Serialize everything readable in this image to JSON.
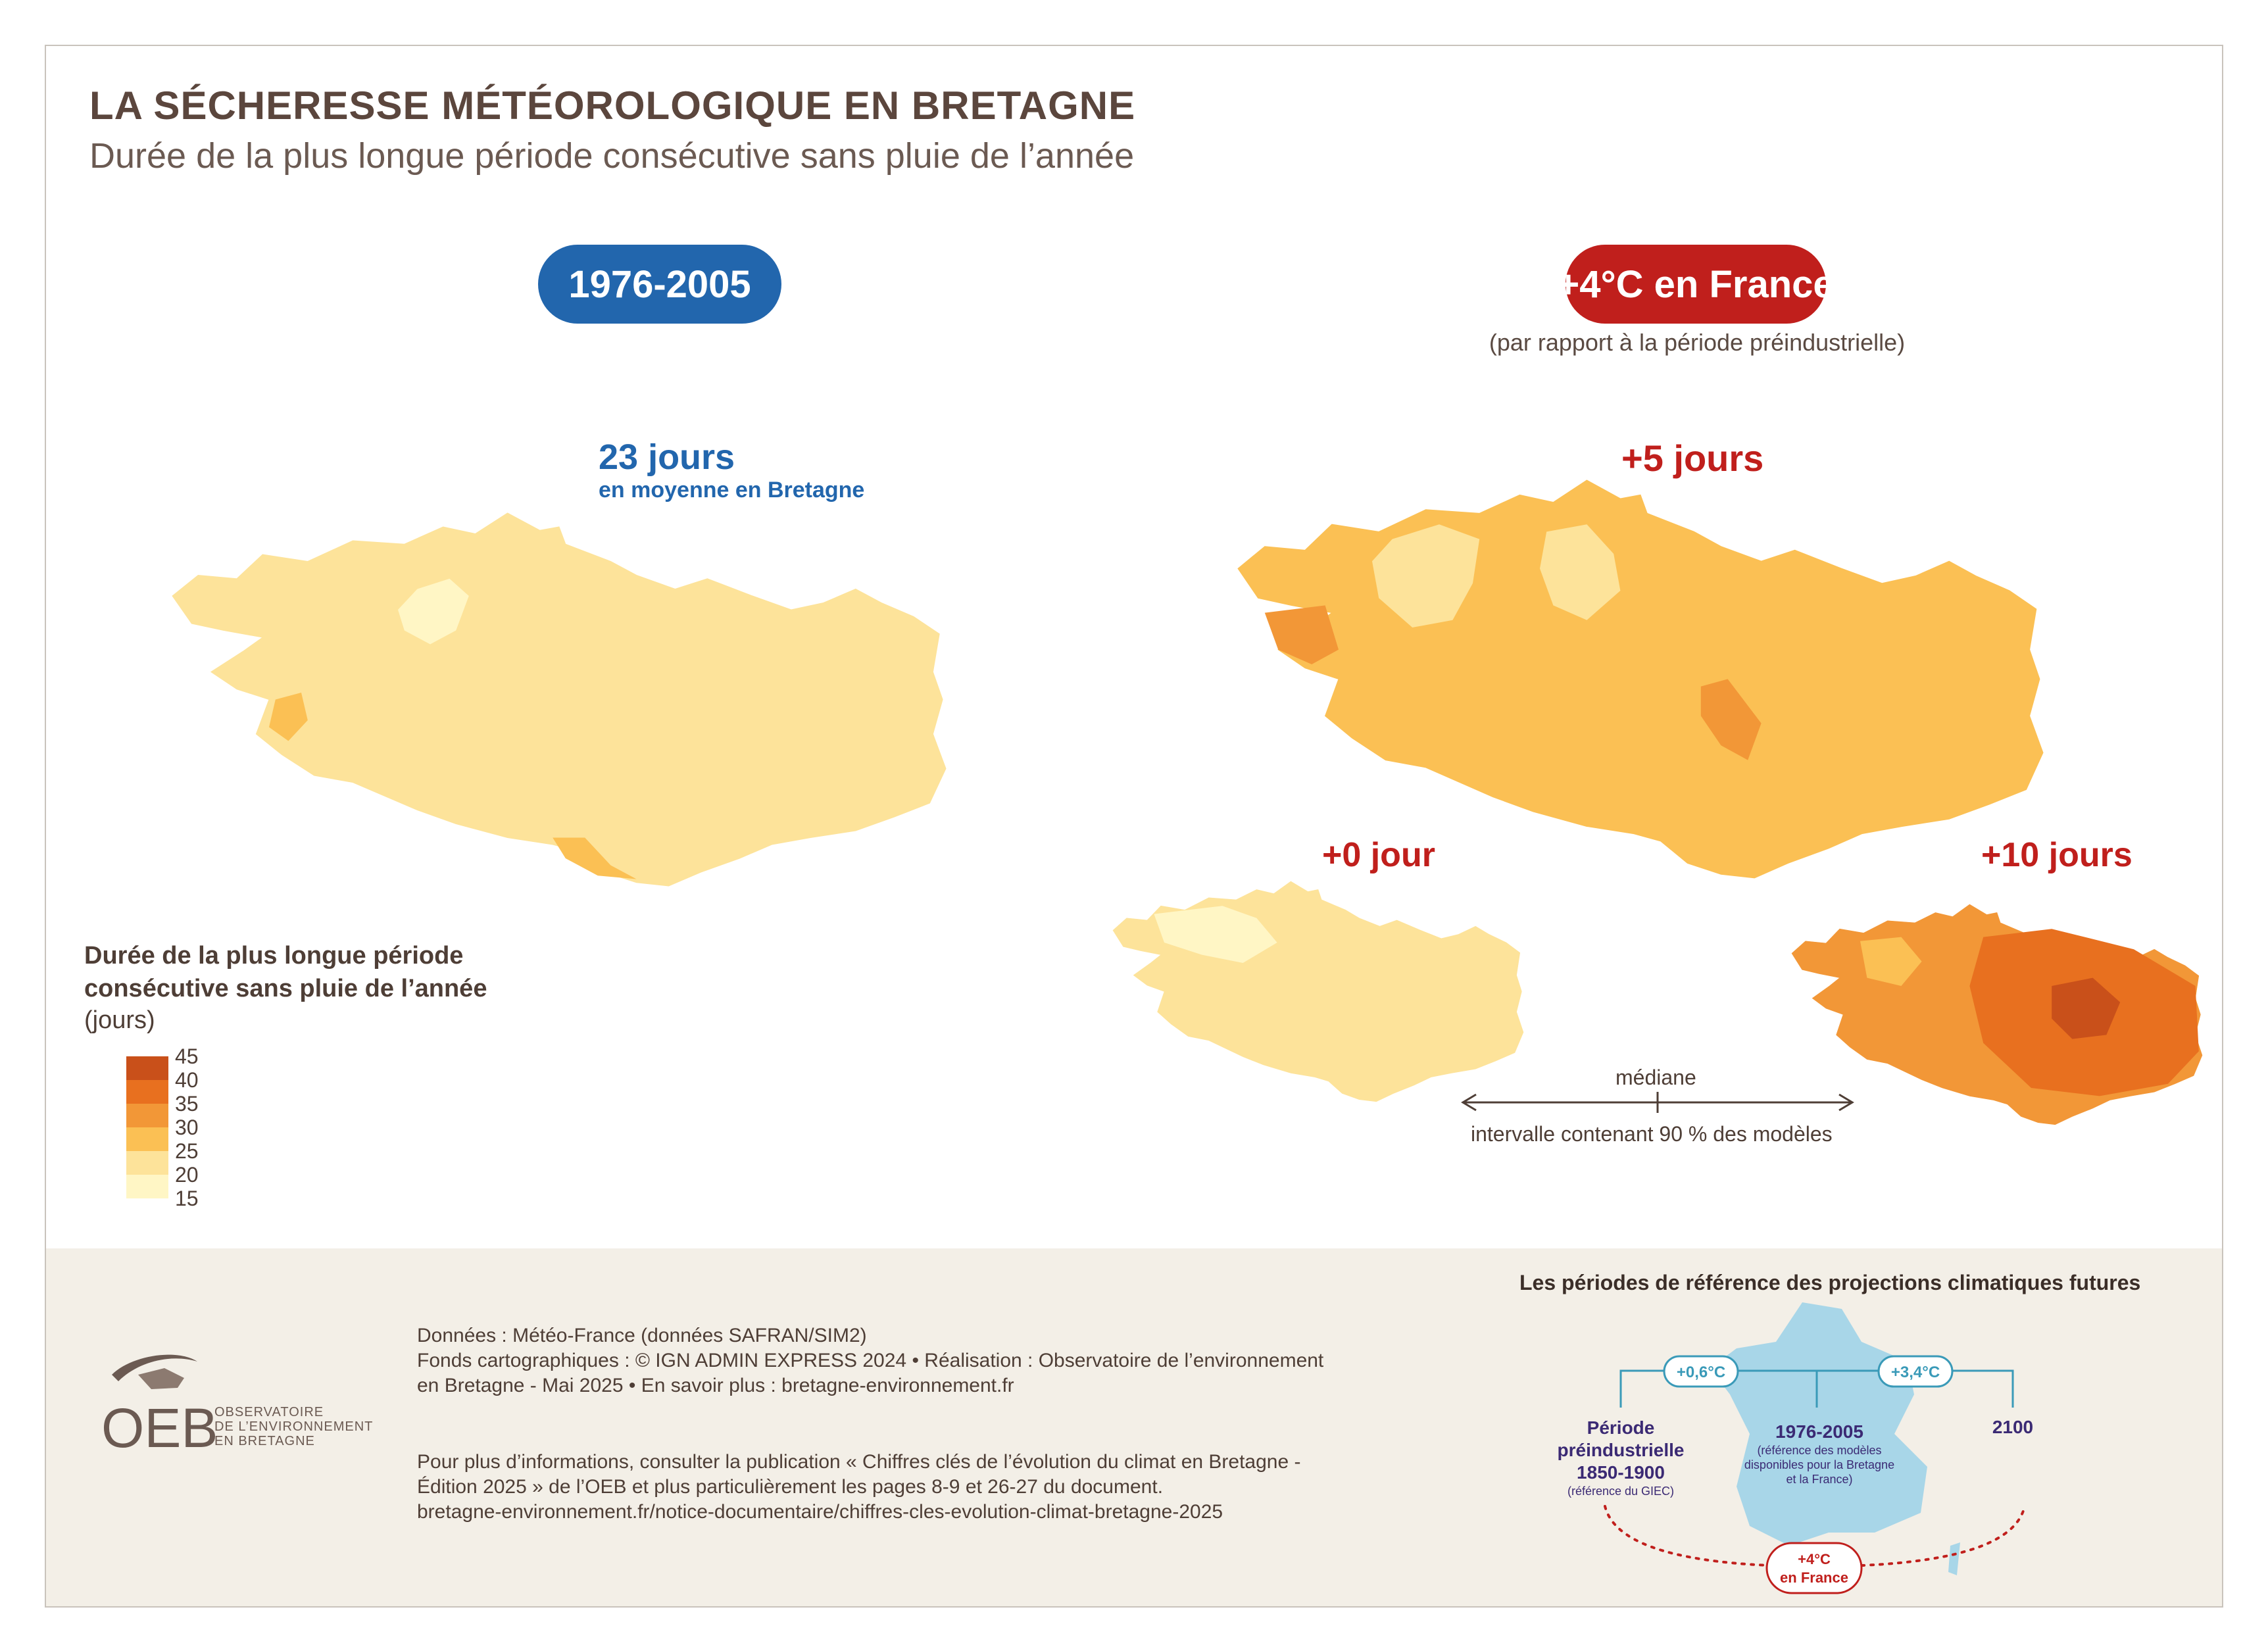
{
  "header": {
    "title": "LA SÉCHERESSE MÉTÉOROLOGIQUE EN BRETAGNE",
    "subtitle": "Durée de la plus longue période consécutive sans pluie de l’année"
  },
  "periods": {
    "baseline": {
      "label": "1976-2005",
      "color": "#2266ad"
    },
    "scenario": {
      "label": "+4°C en France",
      "note": "(par rapport à la période préindustrielle)",
      "color": "#c01f1c"
    }
  },
  "stats": {
    "baseline_value": "23 jours",
    "baseline_label": "en moyenne en Bretagne",
    "median_delta": "+5 jours",
    "low_delta": "+0 jour",
    "high_delta": "+10 jours"
  },
  "legend": {
    "title": "Durée de la plus longue période consécutive sans pluie de l’année",
    "unit": "(jours)",
    "ticks": [
      "45",
      "40",
      "35",
      "30",
      "25",
      "20",
      "15"
    ],
    "classes": [
      {
        "range": "40-45",
        "color": "#c9501a"
      },
      {
        "range": "35-40",
        "color": "#e8701f"
      },
      {
        "range": "30-35",
        "color": "#f29737"
      },
      {
        "range": "25-30",
        "color": "#fbc054"
      },
      {
        "range": "20-25",
        "color": "#fde39a"
      },
      {
        "range": "15-20",
        "color": "#fff6c5"
      }
    ]
  },
  "uncertainty": {
    "median_label": "médiane",
    "interval_label": "intervalle contenant 90 % des modèles"
  },
  "footer": {
    "credits": [
      "Données : Météo-France (données SAFRAN/SIM2)",
      "Fonds cartographiques : © IGN ADMIN EXPRESS 2024 • Réalisation : Observatoire de l’environnement",
      "en Bretagne - Mai 2025  • En savoir plus : bretagne-environnement.fr"
    ],
    "more_info": [
      "Pour plus d’informations, consulter la publication « Chiffres clés de l’évolution du climat en Bretagne -",
      "Édition 2025 » de l’OEB et plus particulièrement les pages 8-9 et 26-27 du document.",
      "bretagne-environnement.fr/notice-documentaire/chiffres-cles-evolution-climat-bretagne-2025"
    ],
    "logo": {
      "acronym": "OEB",
      "line1": "OBSERVATOIRE",
      "line2": "DE L’ENVIRONNEMENT",
      "line3": "EN BRETAGNE"
    }
  },
  "reference_periods": {
    "title": "Les périodes de référence des projections climatiques futures",
    "warming_1": "+0,6°C",
    "warming_2": "+3,4°C",
    "preindustrial_title": "Période",
    "preindustrial_title2": "préindustrielle",
    "preindustrial_years": "1850-1900",
    "preindustrial_note": "(référence du GIEC)",
    "recent_years": "1976-2005",
    "recent_note1": "(référence des modèles",
    "recent_note2": "disponibles pour la Bretagne",
    "recent_note3": "et la France)",
    "future_year": "2100",
    "target_line1": "+4°C",
    "target_line2": "en France"
  }
}
